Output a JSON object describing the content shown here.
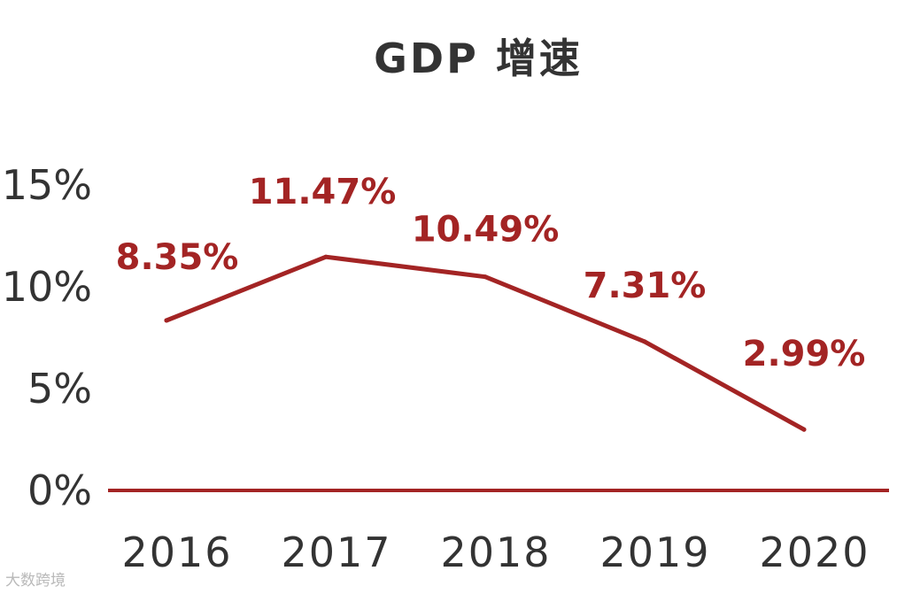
{
  "colors": {
    "accent": "#a32424",
    "text": "#333333",
    "axis": "#a32424"
  },
  "watermark": "大数跨境",
  "chart_data": {
    "type": "line",
    "title": "GDP 增速",
    "categories": [
      "2016",
      "2017",
      "2018",
      "2019",
      "2020"
    ],
    "series": [
      {
        "values": [
          8.35,
          11.47,
          10.49,
          7.31,
          2.99
        ]
      }
    ],
    "data_labels": [
      "8.35%",
      "11.47%",
      "10.49%",
      "7.31%",
      "2.99%"
    ],
    "yticks": [
      "0%",
      "5%",
      "10%",
      "15%"
    ],
    "ytick_values": [
      0,
      5,
      10,
      15
    ],
    "ylim": [
      0,
      15
    ],
    "grid": false,
    "legend": "none"
  }
}
